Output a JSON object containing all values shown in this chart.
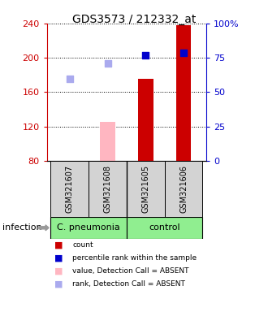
{
  "title": "GDS3573 / 212332_at",
  "samples": [
    "GSM321607",
    "GSM321608",
    "GSM321605",
    "GSM321606"
  ],
  "bar_values": [
    null,
    125,
    175,
    238
  ],
  "bar_bottom": 80,
  "bar_absent_idx": [
    1
  ],
  "dot_blue_present_values": [
    null,
    null,
    203,
    206
  ],
  "dot_blue_absent_values": [
    175,
    193,
    null,
    null
  ],
  "ylim_left": [
    80,
    240
  ],
  "ylim_right": [
    0,
    100
  ],
  "yticks_left": [
    80,
    120,
    160,
    200,
    240
  ],
  "yticks_right": [
    0,
    25,
    50,
    75,
    100
  ],
  "ytick_right_labels": [
    "0",
    "25",
    "50",
    "75",
    "100%"
  ],
  "ylabel_left_color": "#CC0000",
  "ylabel_right_color": "#0000CC",
  "bar_color_present": "#CC0000",
  "bar_color_absent": "#FFB6C1",
  "dot_color_present": "#0000CC",
  "dot_color_absent": "#AAAAEE",
  "group_info": [
    {
      "label": "C. pneumonia",
      "start": 0,
      "end": 1,
      "color": "#90EE90"
    },
    {
      "label": "control",
      "start": 2,
      "end": 3,
      "color": "#90EE90"
    }
  ],
  "infection_label": "infection",
  "legend_colors": [
    "#CC0000",
    "#0000CC",
    "#FFB6C1",
    "#AAAAEE"
  ],
  "legend_labels": [
    "count",
    "percentile rank within the sample",
    "value, Detection Call = ABSENT",
    "rank, Detection Call = ABSENT"
  ],
  "bar_width": 0.4,
  "dot_size": 40,
  "bg_color": "#FFFFFF"
}
